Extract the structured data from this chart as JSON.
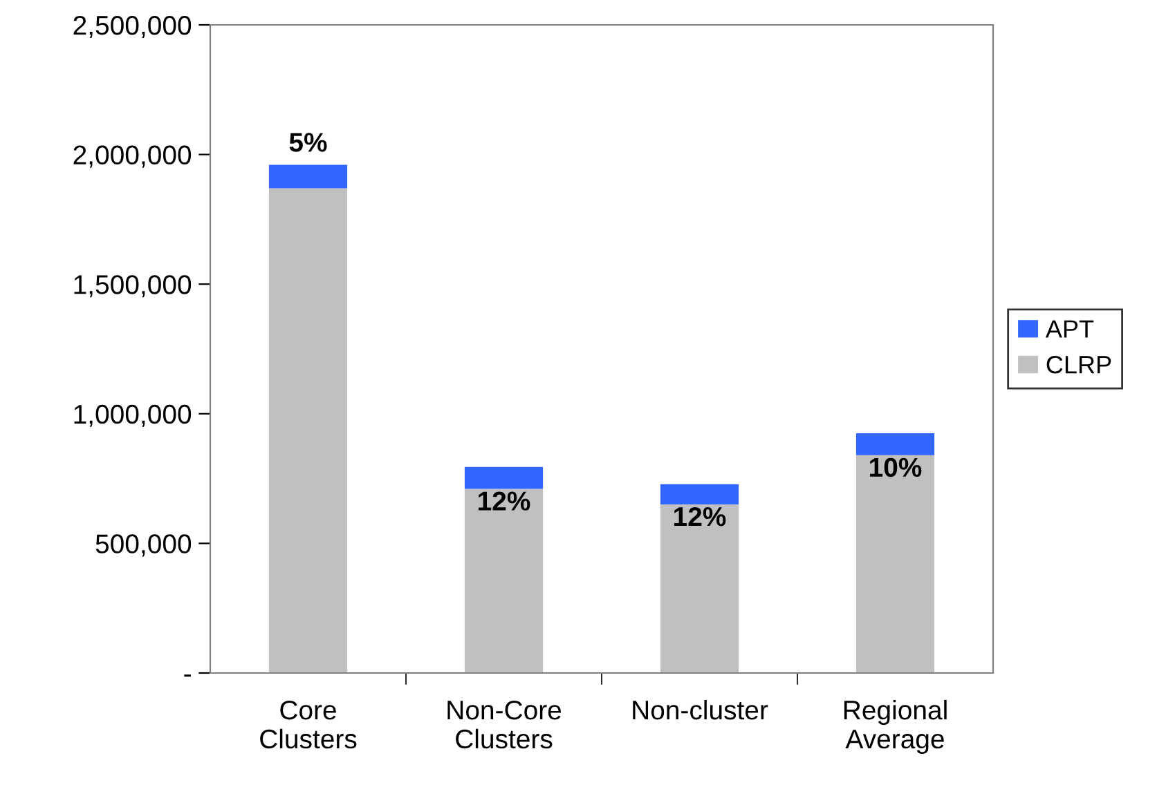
{
  "chart_data": {
    "type": "bar",
    "stacked": true,
    "categories": [
      "Core\nClusters",
      "Non-Core\nClusters",
      "Non-cluster",
      "Regional\nAverage"
    ],
    "series": [
      {
        "name": "CLRP",
        "color": "#c0c0c0",
        "values": [
          1870000,
          710000,
          650000,
          840000
        ]
      },
      {
        "name": "APT",
        "color": "#3366ff",
        "values": [
          90000,
          85000,
          78000,
          85000
        ]
      }
    ],
    "ylim": [
      0,
      2500000
    ],
    "yticks": [
      {
        "value": 0,
        "label": "-"
      },
      {
        "value": 500000,
        "label": "500,000"
      },
      {
        "value": 1000000,
        "label": "1,000,000"
      },
      {
        "value": 1500000,
        "label": "1,500,000"
      },
      {
        "value": 2000000,
        "label": "2,000,000"
      },
      {
        "value": 2500000,
        "label": "2,500,000"
      }
    ],
    "grid": false,
    "legend": "right",
    "annotations": [
      {
        "text": "5%",
        "x": "Core\nClusters",
        "y": 1960000
      },
      {
        "text": "12%",
        "x": "Non-Core\nClusters",
        "y": 710000
      },
      {
        "text": "12%",
        "x": "Non-cluster",
        "y": 650000
      },
      {
        "text": "10%",
        "x": "Regional\nAverage",
        "y": 840000
      }
    ]
  }
}
